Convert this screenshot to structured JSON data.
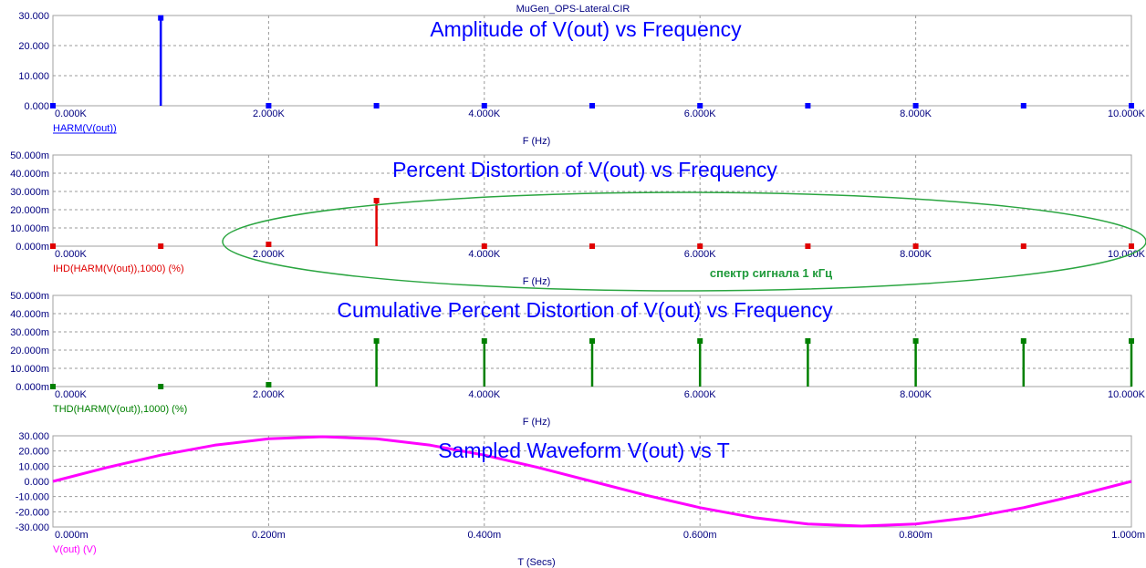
{
  "window_title": "MuGen_OPS-Lateral.CIR",
  "annotation": "спектр сигнала 1 кГц",
  "chart_data": [
    {
      "type": "bar",
      "title": "Amplitude of V(out) vs Frequency",
      "xlabel": "F (Hz)",
      "legend": "HARM(V(out))",
      "color": "#0000ff",
      "xlim": [
        0,
        10000
      ],
      "ylim": [
        0,
        30
      ],
      "x_ticks": [
        "0.000K",
        "2.000K",
        "4.000K",
        "6.000K",
        "8.000K",
        "10.000K"
      ],
      "y_ticks": [
        "0.000",
        "10.000",
        "20.000",
        "30.000"
      ],
      "x": [
        0,
        1000,
        2000,
        3000,
        4000,
        5000,
        6000,
        7000,
        8000,
        9000,
        10000
      ],
      "values": [
        0,
        29.2,
        0,
        0,
        0,
        0,
        0,
        0,
        0,
        0,
        0
      ]
    },
    {
      "type": "bar",
      "title": "Percent Distortion of V(out) vs Frequency",
      "xlabel": "F (Hz)",
      "legend": "IHD(HARM(V(out)),1000) (%)",
      "color": "#e00000",
      "xlim": [
        0,
        10000
      ],
      "ylim": [
        0,
        0.05
      ],
      "x_ticks": [
        "0.000K",
        "2.000K",
        "4.000K",
        "6.000K",
        "8.000K",
        "10.000K"
      ],
      "y_ticks": [
        "0.000m",
        "10.000m",
        "20.000m",
        "30.000m",
        "40.000m",
        "50.000m"
      ],
      "x": [
        0,
        1000,
        2000,
        3000,
        4000,
        5000,
        6000,
        7000,
        8000,
        9000,
        10000
      ],
      "values": [
        0,
        0,
        0.001,
        0.025,
        0,
        0,
        0,
        0,
        0,
        0,
        0
      ]
    },
    {
      "type": "bar",
      "title": "Cumulative Percent Distortion of V(out) vs Frequency",
      "xlabel": "F (Hz)",
      "legend": "THD(HARM(V(out)),1000) (%)",
      "color": "#008000",
      "xlim": [
        0,
        10000
      ],
      "ylim": [
        0,
        0.05
      ],
      "x_ticks": [
        "0.000K",
        "2.000K",
        "4.000K",
        "6.000K",
        "8.000K",
        "10.000K"
      ],
      "y_ticks": [
        "0.000m",
        "10.000m",
        "20.000m",
        "30.000m",
        "40.000m",
        "50.000m"
      ],
      "x": [
        0,
        1000,
        2000,
        3000,
        4000,
        5000,
        6000,
        7000,
        8000,
        9000,
        10000
      ],
      "values": [
        0,
        0,
        0.001,
        0.025,
        0.025,
        0.025,
        0.025,
        0.025,
        0.025,
        0.025,
        0.025
      ]
    },
    {
      "type": "line",
      "title": "Sampled Waveform  V(out) vs T",
      "xlabel": "T (Secs)",
      "legend": "V(out) (V)",
      "color": "#ff00ff",
      "xlim": [
        0,
        0.001
      ],
      "ylim": [
        -30,
        30
      ],
      "x_ticks": [
        "0.000m",
        "0.200m",
        "0.400m",
        "0.600m",
        "0.800m",
        "1.000m"
      ],
      "y_ticks": [
        "-30.000",
        "-20.000",
        "-10.000",
        "0.000",
        "10.000",
        "20.000",
        "30.000"
      ],
      "x": [
        0,
        5e-05,
        0.0001,
        0.00015,
        0.0002,
        0.00025,
        0.0003,
        0.00035,
        0.0004,
        0.00045,
        0.0005,
        0.00055,
        0.0006,
        0.00065,
        0.0007,
        0.00075,
        0.0008,
        0.00085,
        0.0009,
        0.00095,
        0.001
      ],
      "values": [
        0,
        9.1,
        17.3,
        23.8,
        28.0,
        29.4,
        28.0,
        23.8,
        17.3,
        9.1,
        0,
        -9.1,
        -17.3,
        -23.8,
        -28.0,
        -29.4,
        -28.0,
        -23.8,
        -17.3,
        -9.1,
        0
      ]
    }
  ]
}
